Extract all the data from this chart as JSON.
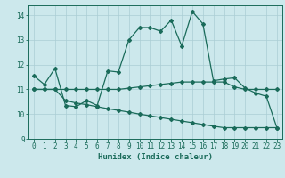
{
  "xlabel": "Humidex (Indice chaleur)",
  "xlim": [
    -0.5,
    23.5
  ],
  "ylim": [
    9,
    14.4
  ],
  "yticks": [
    9,
    10,
    11,
    12,
    13,
    14
  ],
  "xticks": [
    0,
    1,
    2,
    3,
    4,
    5,
    6,
    7,
    8,
    9,
    10,
    11,
    12,
    13,
    14,
    15,
    16,
    17,
    18,
    19,
    20,
    21,
    22,
    23
  ],
  "bg_color": "#cce8ec",
  "line_color": "#1a6b5a",
  "grid_color": "#aacdd5",
  "line1_x": [
    0,
    1,
    2,
    3,
    4,
    5,
    6,
    7,
    8,
    9,
    10,
    11,
    12,
    13,
    14,
    15,
    16,
    17,
    18,
    19,
    20,
    21,
    22,
    23
  ],
  "line1_y": [
    11.55,
    11.2,
    11.85,
    10.35,
    10.3,
    10.55,
    10.35,
    11.75,
    11.7,
    13.0,
    13.5,
    13.5,
    13.35,
    13.8,
    12.75,
    14.15,
    13.65,
    11.35,
    11.42,
    11.47,
    11.05,
    10.85,
    10.72,
    9.45
  ],
  "line2_x": [
    0,
    1,
    2,
    3,
    4,
    5,
    6,
    7,
    8,
    9,
    10,
    11,
    12,
    13,
    14,
    15,
    16,
    17,
    18,
    19,
    20,
    21,
    22,
    23
  ],
  "line2_y": [
    11.0,
    11.0,
    11.0,
    11.0,
    11.0,
    11.0,
    11.0,
    11.0,
    11.0,
    11.05,
    11.1,
    11.15,
    11.2,
    11.25,
    11.3,
    11.3,
    11.3,
    11.3,
    11.3,
    11.1,
    11.0,
    11.0,
    11.0,
    11.0
  ],
  "line3_x": [
    0,
    1,
    2,
    3,
    4,
    5,
    6,
    7,
    8,
    9,
    10,
    11,
    12,
    13,
    14,
    15,
    16,
    17,
    18,
    19,
    20,
    21,
    22,
    23
  ],
  "line3_y": [
    11.0,
    11.0,
    11.0,
    10.55,
    10.45,
    10.38,
    10.3,
    10.22,
    10.15,
    10.08,
    10.0,
    9.93,
    9.86,
    9.79,
    9.72,
    9.65,
    9.58,
    9.51,
    9.45,
    9.45,
    9.45,
    9.45,
    9.45,
    9.45
  ]
}
